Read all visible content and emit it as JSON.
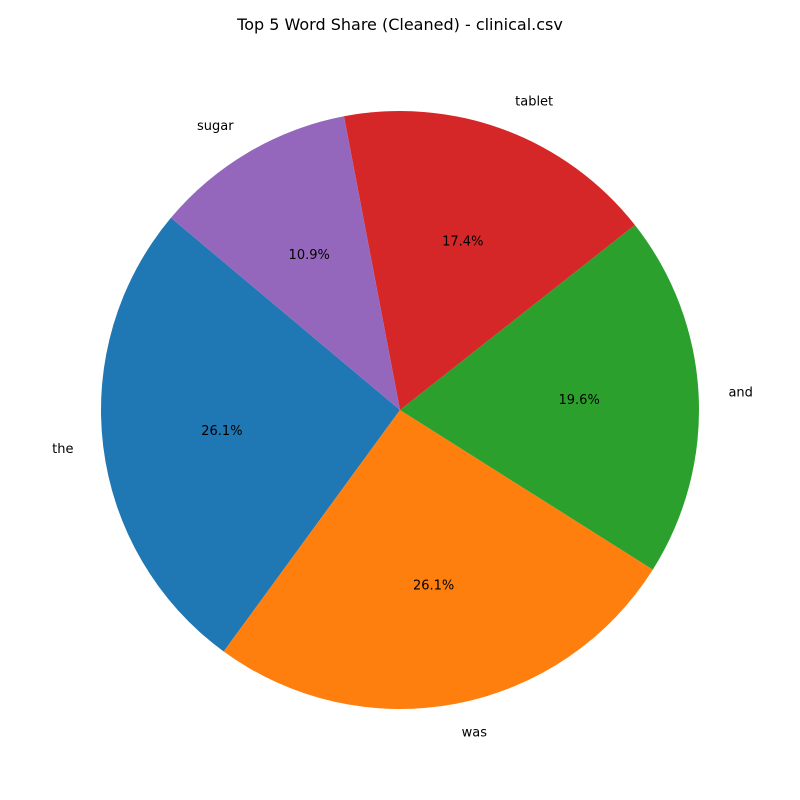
{
  "chart_data": {
    "type": "pie",
    "title": "Top 5 Word Share (Cleaned) - clinical.csv",
    "categories": [
      "the",
      "was",
      "and",
      "tablet",
      "sugar"
    ],
    "values": [
      26.1,
      26.1,
      19.6,
      17.4,
      10.9
    ],
    "value_labels": [
      "26.1%",
      "26.1%",
      "19.6%",
      "17.4%",
      "10.9%"
    ],
    "colors": [
      "#1f77b4",
      "#ff7f0e",
      "#2ca02c",
      "#d62728",
      "#9467bd"
    ],
    "start_angle": 140,
    "direction": "counterclockwise",
    "legend": "none"
  }
}
